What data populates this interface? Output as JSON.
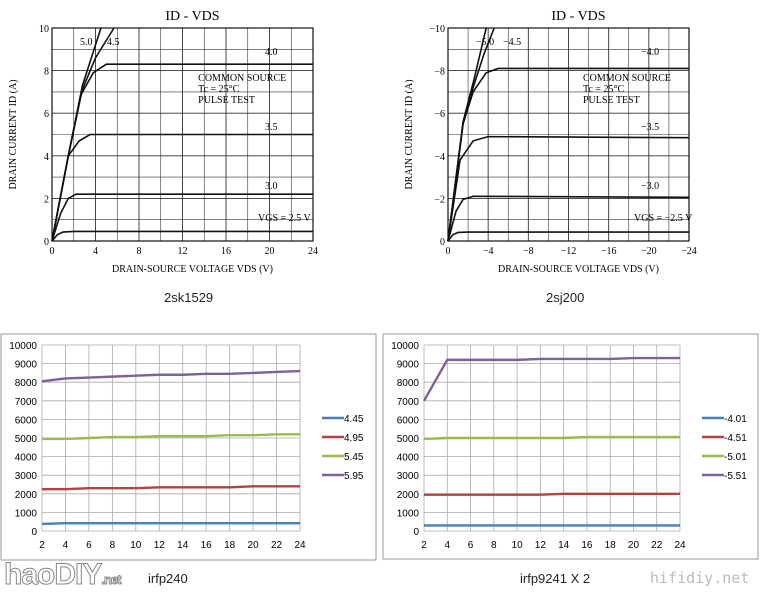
{
  "chart_data": [
    {
      "type": "line",
      "title": "ID - VDS",
      "caption": "2sk1529",
      "xlabel": "DRAIN-SOURCE VOLTAGE  VDS  (V)",
      "ylabel": "DRAIN CURRENT  ID  (A)",
      "xlim": [
        0,
        24
      ],
      "ylim": [
        0,
        10
      ],
      "xticks": [
        0,
        4,
        8,
        12,
        16,
        20,
        24
      ],
      "yticks": [
        0,
        2,
        4,
        6,
        8,
        10
      ],
      "annotation": [
        "COMMON SOURCE",
        "Tc = 25°C",
        "PULSE TEST"
      ],
      "series": [
        {
          "name": "VGS = 2.5 V",
          "points": [
            [
              0,
              0
            ],
            [
              0.5,
              0.3
            ],
            [
              1,
              0.42
            ],
            [
              2,
              0.45
            ],
            [
              24,
              0.45
            ]
          ]
        },
        {
          "name": "3.0",
          "points": [
            [
              0,
              0
            ],
            [
              0.8,
              1.3
            ],
            [
              1.5,
              2.0
            ],
            [
              2.2,
              2.2
            ],
            [
              24,
              2.2
            ]
          ]
        },
        {
          "name": "3.5",
          "points": [
            [
              0,
              0
            ],
            [
              1.5,
              4.0
            ],
            [
              2.5,
              4.7
            ],
            [
              3.5,
              5.0
            ],
            [
              24,
              5.0
            ]
          ]
        },
        {
          "name": "4.0",
          "points": [
            [
              0,
              0
            ],
            [
              1.5,
              4.0
            ],
            [
              2.7,
              6.9
            ],
            [
              3.8,
              7.9
            ],
            [
              5,
              8.3
            ],
            [
              24,
              8.3
            ]
          ]
        },
        {
          "name": "4.5",
          "points": [
            [
              0,
              0
            ],
            [
              1.5,
              4.0
            ],
            [
              2.7,
              7.0
            ],
            [
              4,
              8.6
            ],
            [
              5.7,
              10
            ]
          ]
        },
        {
          "name": "5.0",
          "points": [
            [
              0,
              0
            ],
            [
              1.5,
              4.0
            ],
            [
              2.8,
              7.3
            ],
            [
              4.5,
              10
            ]
          ]
        }
      ]
    },
    {
      "type": "line",
      "title": "ID - VDS",
      "caption": "2sj200",
      "xlabel": "DRAIN-SOURCE VOLTAGE  VDS  (V)",
      "ylabel": "DRAIN CURRENT  ID  (A)",
      "xlim": [
        0,
        -24
      ],
      "ylim": [
        0,
        -10
      ],
      "xticks": [
        0,
        -4,
        -8,
        -12,
        -16,
        -20,
        -24
      ],
      "yticks": [
        0,
        -2,
        -4,
        -6,
        -8,
        -10
      ],
      "annotation": [
        "COMMON SOURCE",
        "Tc = 25°C",
        "PULSE TEST"
      ],
      "series": [
        {
          "name": "VGS = -2.5 V",
          "points": [
            [
              0,
              0
            ],
            [
              -0.5,
              -0.3
            ],
            [
              -1,
              -0.4
            ],
            [
              -2,
              -0.42
            ],
            [
              -24,
              -0.42
            ]
          ]
        },
        {
          "name": "-3.0",
          "points": [
            [
              0,
              0
            ],
            [
              -0.8,
              -1.4
            ],
            [
              -1.5,
              -1.95
            ],
            [
              -2.5,
              -2.1
            ],
            [
              -24,
              -2.05
            ]
          ]
        },
        {
          "name": "-3.5",
          "points": [
            [
              0,
              0
            ],
            [
              -1.2,
              -3.8
            ],
            [
              -2.5,
              -4.7
            ],
            [
              -4,
              -4.9
            ],
            [
              -24,
              -4.85
            ]
          ]
        },
        {
          "name": "-4.0",
          "points": [
            [
              0,
              0
            ],
            [
              -1.5,
              -5.5
            ],
            [
              -2.5,
              -7.0
            ],
            [
              -3.8,
              -7.9
            ],
            [
              -5,
              -8.1
            ],
            [
              -24,
              -8.1
            ]
          ]
        },
        {
          "name": "-4.5",
          "points": [
            [
              0,
              0
            ],
            [
              -1.5,
              -5.5
            ],
            [
              -2.5,
              -7.2
            ],
            [
              -3.6,
              -8.8
            ],
            [
              -4.6,
              -10
            ]
          ]
        },
        {
          "name": "-5.0",
          "points": [
            [
              0,
              0
            ],
            [
              -1.5,
              -5.6
            ],
            [
              -2.6,
              -7.6
            ],
            [
              -3.8,
              -10
            ]
          ]
        }
      ]
    },
    {
      "type": "line",
      "caption": "irfp240",
      "x": [
        2,
        4,
        6,
        8,
        10,
        12,
        14,
        16,
        18,
        20,
        22,
        24
      ],
      "ylim": [
        0,
        10000
      ],
      "yticks": [
        0,
        1000,
        2000,
        3000,
        4000,
        5000,
        6000,
        7000,
        8000,
        9000,
        10000
      ],
      "xticks": [
        2,
        4,
        6,
        8,
        10,
        12,
        14,
        16,
        18,
        20,
        22,
        24
      ],
      "legend": "right",
      "series": [
        {
          "name": "4.45",
          "color": "#4a7eb5",
          "values": [
            380,
            420,
            420,
            420,
            420,
            420,
            420,
            420,
            420,
            420,
            420,
            420
          ]
        },
        {
          "name": "4.95",
          "color": "#b5423f",
          "values": [
            2250,
            2250,
            2300,
            2300,
            2300,
            2350,
            2350,
            2350,
            2350,
            2400,
            2400,
            2400
          ]
        },
        {
          "name": "5.45",
          "color": "#98bb4b",
          "values": [
            4950,
            4950,
            5000,
            5050,
            5050,
            5100,
            5100,
            5100,
            5150,
            5150,
            5200,
            5200
          ]
        },
        {
          "name": "5.95",
          "color": "#7e619a",
          "values": [
            8050,
            8200,
            8250,
            8300,
            8350,
            8400,
            8400,
            8450,
            8450,
            8500,
            8550,
            8600
          ]
        }
      ]
    },
    {
      "type": "line",
      "caption": "irfp9241 X 2",
      "x": [
        2,
        4,
        6,
        8,
        10,
        12,
        14,
        16,
        18,
        20,
        22,
        24
      ],
      "ylim": [
        0,
        10000
      ],
      "yticks": [
        0,
        1000,
        2000,
        3000,
        4000,
        5000,
        6000,
        7000,
        8000,
        9000,
        10000
      ],
      "xticks": [
        2,
        4,
        6,
        8,
        10,
        12,
        14,
        16,
        18,
        20,
        22,
        24
      ],
      "legend": "right",
      "series": [
        {
          "name": "-4.01",
          "color": "#4a7eb5",
          "values": [
            300,
            300,
            300,
            300,
            300,
            300,
            300,
            300,
            300,
            300,
            300,
            300
          ]
        },
        {
          "name": "-4.51",
          "color": "#b5423f",
          "values": [
            1950,
            1950,
            1950,
            1950,
            1950,
            1950,
            2000,
            2000,
            2000,
            2000,
            2000,
            2000
          ]
        },
        {
          "name": "-5.01",
          "color": "#98bb4b",
          "values": [
            4950,
            5000,
            5000,
            5000,
            5000,
            5000,
            5000,
            5050,
            5050,
            5050,
            5050,
            5050
          ]
        },
        {
          "name": "-5.51",
          "color": "#7e619a",
          "values": [
            7000,
            9200,
            9200,
            9200,
            9200,
            9250,
            9250,
            9250,
            9250,
            9300,
            9300,
            9300
          ]
        }
      ]
    }
  ],
  "watermarks": {
    "logo": "haoDIY.net",
    "site": "hifidiy.net"
  }
}
